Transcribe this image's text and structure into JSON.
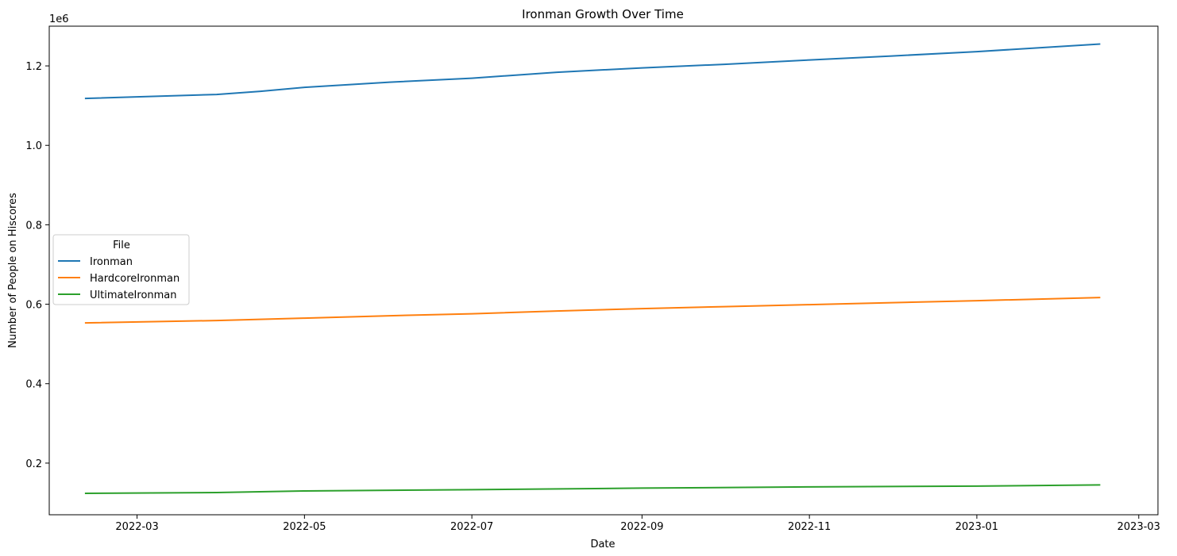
{
  "chart_data": {
    "type": "line",
    "title": "Ironman Growth Over Time",
    "xlabel": "Date",
    "ylabel": "Number of People on Hiscores",
    "y_offset_label": "1e6",
    "x_ticks": [
      "2022-03",
      "2022-05",
      "2022-07",
      "2022-09",
      "2022-11",
      "2023-01",
      "2023-03"
    ],
    "y_ticks": [
      "0.2",
      "0.4",
      "0.6",
      "0.8",
      "1.0",
      "1.2"
    ],
    "xlim": [
      "2022-01-28",
      "2023-03-08"
    ],
    "ylim": [
      70000,
      1300000
    ],
    "grid": false,
    "legend": {
      "title": "File",
      "placement": "center-left"
    },
    "series": [
      {
        "name": "Ironman",
        "color": "#1f77b4",
        "points": [
          [
            "2022-02-10",
            1118000
          ],
          [
            "2022-03-30",
            1128000
          ],
          [
            "2022-04-15",
            1136000
          ],
          [
            "2022-05-01",
            1146000
          ],
          [
            "2022-06-01",
            1159000
          ],
          [
            "2022-07-01",
            1169000
          ],
          [
            "2022-08-01",
            1184000
          ],
          [
            "2022-09-01",
            1195000
          ],
          [
            "2022-10-01",
            1204000
          ],
          [
            "2022-11-01",
            1215000
          ],
          [
            "2022-12-01",
            1225000
          ],
          [
            "2023-01-01",
            1236000
          ],
          [
            "2023-02-15",
            1255000
          ]
        ]
      },
      {
        "name": "HardcoreIronman",
        "color": "#ff7f0e",
        "points": [
          [
            "2022-02-10",
            553000
          ],
          [
            "2022-03-30",
            559000
          ],
          [
            "2022-05-01",
            565000
          ],
          [
            "2022-06-01",
            571000
          ],
          [
            "2022-07-01",
            576000
          ],
          [
            "2022-08-01",
            583000
          ],
          [
            "2022-09-01",
            589000
          ],
          [
            "2022-10-01",
            594000
          ],
          [
            "2022-11-01",
            599000
          ],
          [
            "2022-12-01",
            604000
          ],
          [
            "2023-01-01",
            609000
          ],
          [
            "2023-02-15",
            617000
          ]
        ]
      },
      {
        "name": "UltimateIronman",
        "color": "#2ca02c",
        "points": [
          [
            "2022-02-10",
            124000
          ],
          [
            "2022-03-30",
            126000
          ],
          [
            "2022-05-01",
            130000
          ],
          [
            "2022-07-01",
            133000
          ],
          [
            "2022-09-01",
            137000
          ],
          [
            "2022-11-01",
            140000
          ],
          [
            "2023-01-01",
            142000
          ],
          [
            "2023-02-15",
            145000
          ]
        ]
      }
    ]
  }
}
